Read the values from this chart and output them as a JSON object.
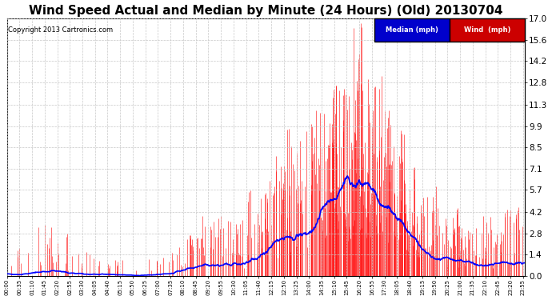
{
  "title": "Wind Speed Actual and Median by Minute (24 Hours) (Old) 20130704",
  "copyright": "Copyright 2013 Cartronics.com",
  "yticks": [
    0.0,
    1.4,
    2.8,
    4.2,
    5.7,
    7.1,
    8.5,
    9.9,
    11.3,
    12.8,
    14.2,
    15.6,
    17.0
  ],
  "ymin": 0.0,
  "ymax": 17.0,
  "total_minutes": 1440,
  "background_color": "#ffffff",
  "plot_bg_color": "#ffffff",
  "grid_color": "#c8c8c8",
  "bar_color": "#ff0000",
  "line_color": "#0000ff",
  "title_fontsize": 11,
  "legend_median_bg": "#0000cc",
  "legend_wind_bg": "#cc0000",
  "xtick_interval": 35,
  "seed": 12345
}
